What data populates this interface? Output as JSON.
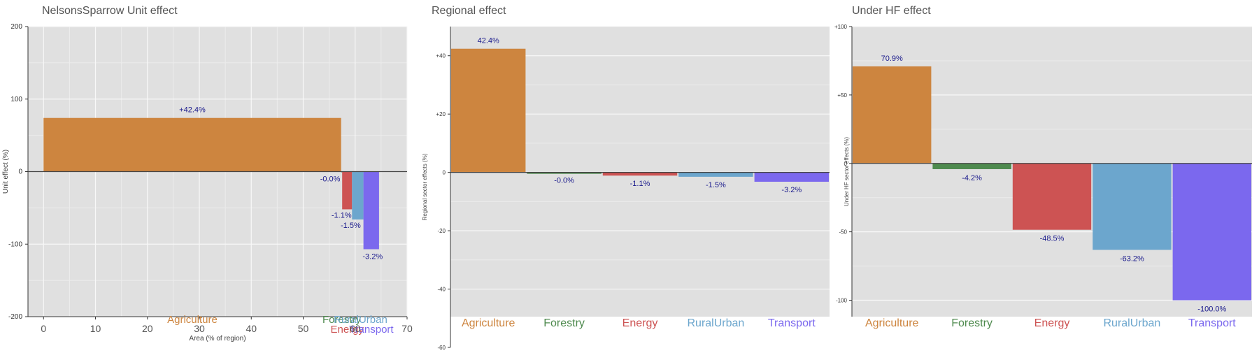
{
  "chart_data": [
    {
      "type": "bar",
      "title": "NelsonsSparrow Unit effect",
      "xlabel": "Area (% of region)",
      "ylabel": "Unit effect (%)",
      "xlim": [
        -3,
        70
      ],
      "ylim": [
        -200,
        200
      ],
      "yticks": [
        "200",
        "100",
        "0",
        "-100",
        "-200"
      ],
      "ytick_values": [
        200,
        100,
        0,
        -100,
        -200
      ],
      "xticks": [
        "0",
        "10",
        "20",
        "30",
        "40",
        "50",
        "60",
        "70"
      ],
      "xtick_values": [
        0,
        10,
        20,
        30,
        40,
        50,
        60,
        70
      ],
      "grid": true,
      "bars": [
        {
          "name": "Agriculture",
          "x_start": 0,
          "x_end": 57.3,
          "value": 74,
          "label": "+42.4%",
          "color": "#CD853F"
        },
        {
          "name": "Forestry",
          "x_start": 57.3,
          "x_end": 57.5,
          "value": -0.5,
          "label": "-0.0%",
          "color": "#4E8A4E"
        },
        {
          "name": "Energy",
          "x_start": 57.5,
          "x_end": 59.4,
          "value": -52,
          "label": "-1.1%",
          "color": "#CD5353"
        },
        {
          "name": "RuralUrban",
          "x_start": 59.4,
          "x_end": 61.6,
          "value": -66,
          "label": "-1.5%",
          "color": "#6CA6CD"
        },
        {
          "name": "Transport",
          "x_start": 61.6,
          "x_end": 64.6,
          "value": -107,
          "label": "-3.2%",
          "color": "#7B68EE"
        }
      ]
    },
    {
      "type": "bar",
      "title": "Regional effect",
      "xlabel": "",
      "ylabel": "Regional sector effects (%)",
      "ylim": [
        -60,
        50
      ],
      "yticks": [
        "+40",
        "+20",
        "0",
        "-20",
        "-40",
        "-60"
      ],
      "ytick_values": [
        40,
        20,
        0,
        -20,
        -40,
        -60
      ],
      "grid": true,
      "categories": [
        "Agriculture",
        "Forestry",
        "Energy",
        "RuralUrban",
        "Transport"
      ],
      "values": [
        42.4,
        -0.0,
        -1.1,
        -1.5,
        -3.2
      ],
      "labels": [
        "42.4%",
        "-0.0%",
        "-1.1%",
        "-1.5%",
        "-3.2%"
      ],
      "colors": [
        "#CD853F",
        "#4E8A4E",
        "#CD5353",
        "#6CA6CD",
        "#7B68EE"
      ]
    },
    {
      "type": "bar",
      "title": "Under HF effect",
      "xlabel": "",
      "ylabel": "Under HF sector effects (%)",
      "ylim": [
        -112,
        100
      ],
      "yticks": [
        "+100",
        "+50",
        "0",
        "-50",
        "-100"
      ],
      "ytick_values": [
        100,
        50,
        0,
        -50,
        -100
      ],
      "grid": true,
      "categories": [
        "Agriculture",
        "Forestry",
        "Energy",
        "RuralUrban",
        "Transport"
      ],
      "values": [
        70.9,
        -4.2,
        -48.5,
        -63.2,
        -100.0
      ],
      "labels": [
        "70.9%",
        "-4.2%",
        "-48.5%",
        "-63.2%",
        "-100.0%"
      ],
      "colors": [
        "#CD853F",
        "#4E8A4E",
        "#CD5353",
        "#6CA6CD",
        "#7B68EE"
      ]
    }
  ]
}
